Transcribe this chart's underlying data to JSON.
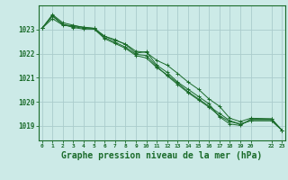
{
  "background_color": "#cceae7",
  "grid_color": "#aacccc",
  "line_color": "#1a6b2a",
  "marker_color": "#1a6b2a",
  "xlabel": "Graphe pression niveau de la mer (hPa)",
  "xlabel_fontsize": 7,
  "yticks": [
    1019,
    1020,
    1021,
    1022,
    1023
  ],
  "ylim": [
    1018.4,
    1024.0
  ],
  "xlim": [
    -0.3,
    23.3
  ],
  "xticks": [
    0,
    1,
    2,
    3,
    4,
    5,
    6,
    7,
    8,
    9,
    10,
    11,
    12,
    13,
    14,
    15,
    16,
    17,
    18,
    19,
    20,
    22,
    23
  ],
  "xtick_labels": [
    "0",
    "1",
    "2",
    "3",
    "4",
    "5",
    "6",
    "7",
    "8",
    "9",
    "10",
    "11",
    "12",
    "13",
    "14",
    "15",
    "16",
    "17",
    "18",
    "19",
    "20",
    "22",
    "23"
  ],
  "series": [
    {
      "x": [
        0,
        1,
        2,
        3,
        4,
        5,
        6,
        7,
        8,
        9,
        10,
        11,
        12,
        13,
        14,
        15,
        16,
        17,
        18,
        19,
        20,
        22,
        23
      ],
      "y": [
        1023.05,
        1023.55,
        1023.2,
        1023.15,
        1023.1,
        1023.05,
        1022.72,
        1022.55,
        1022.4,
        1022.1,
        1022.05,
        1021.72,
        1021.52,
        1021.18,
        1020.82,
        1020.52,
        1020.12,
        1019.82,
        1019.32,
        1019.18,
        1019.32,
        1019.3,
        1018.82
      ]
    },
    {
      "x": [
        0,
        1,
        2,
        3,
        4,
        5,
        6,
        7,
        8,
        9,
        10,
        11,
        12,
        13,
        14,
        15,
        16,
        17,
        18,
        19,
        20,
        22,
        23
      ],
      "y": [
        1023.05,
        1023.45,
        1023.18,
        1023.12,
        1023.05,
        1023.02,
        1022.62,
        1022.42,
        1022.22,
        1021.92,
        1021.82,
        1021.42,
        1021.12,
        1020.78,
        1020.42,
        1020.12,
        1019.82,
        1019.52,
        1019.22,
        1019.08,
        1019.22,
        1019.22,
        1018.82
      ]
    },
    {
      "x": [
        0,
        1,
        2,
        3,
        4,
        5,
        6,
        7,
        8,
        9,
        10,
        11,
        12,
        13,
        14,
        15,
        16,
        17,
        18,
        19,
        20,
        22,
        23
      ],
      "y": [
        1023.05,
        1023.62,
        1023.28,
        1023.18,
        1023.08,
        1023.05,
        1022.72,
        1022.58,
        1022.38,
        1022.02,
        1022.08,
        1021.52,
        1021.22,
        1020.82,
        1020.52,
        1020.22,
        1019.92,
        1019.38,
        1019.08,
        1019.02,
        1019.28,
        1019.28,
        1018.82
      ]
    },
    {
      "x": [
        0,
        1,
        2,
        3,
        4,
        5,
        6,
        7,
        8,
        9,
        10,
        11,
        12,
        13,
        14,
        15,
        16,
        17,
        18,
        19,
        20,
        22,
        23
      ],
      "y": [
        1023.05,
        1023.58,
        1023.22,
        1023.08,
        1023.02,
        1023.02,
        1022.67,
        1022.47,
        1022.27,
        1021.97,
        1021.92,
        1021.47,
        1021.08,
        1020.72,
        1020.38,
        1020.08,
        1019.78,
        1019.42,
        1019.18,
        1019.07,
        1019.22,
        1019.22,
        1018.82
      ]
    }
  ]
}
